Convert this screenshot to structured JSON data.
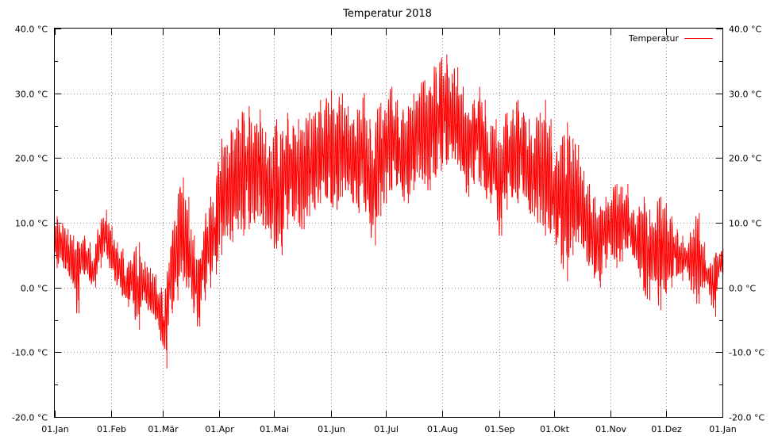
{
  "chart_data": {
    "type": "line",
    "title": "Temperatur 2018",
    "xlabel": "",
    "ylabel": "",
    "grid": true,
    "legend_position": "top-right",
    "xlim": [
      "2018-01-01",
      "2019-01-01"
    ],
    "ylim": [
      -20,
      40
    ],
    "y_ticks": [
      {
        "value": -20,
        "label": "-20.0 °C"
      },
      {
        "value": -10,
        "label": "-10.0 °C"
      },
      {
        "value": 0,
        "label": "0.0 °C"
      },
      {
        "value": 10,
        "label": "10.0 °C"
      },
      {
        "value": 20,
        "label": "20.0 °C"
      },
      {
        "value": 30,
        "label": "30.0 °C"
      },
      {
        "value": 40,
        "label": "40.0 °C"
      }
    ],
    "x_ticks": [
      {
        "value": "2018-01-01",
        "label": "01.Jan"
      },
      {
        "value": "2018-02-01",
        "label": "01.Feb"
      },
      {
        "value": "2018-03-01",
        "label": "01.Mär"
      },
      {
        "value": "2018-04-01",
        "label": "01.Apr"
      },
      {
        "value": "2018-05-01",
        "label": "01.Mai"
      },
      {
        "value": "2018-06-01",
        "label": "01.Jun"
      },
      {
        "value": "2018-07-01",
        "label": "01.Jul"
      },
      {
        "value": "2018-08-01",
        "label": "01.Aug"
      },
      {
        "value": "2018-09-01",
        "label": "01.Sep"
      },
      {
        "value": "2018-10-01",
        "label": "01.Okt"
      },
      {
        "value": "2018-11-01",
        "label": "01.Nov"
      },
      {
        "value": "2018-12-01",
        "label": "01.Dez"
      },
      {
        "value": "2019-01-01",
        "label": "01.Jan"
      }
    ],
    "series": [
      {
        "name": "Temperatur",
        "color": "#ff0000",
        "x": [
          "2018-01-01",
          "2018-01-04",
          "2018-01-07",
          "2018-01-10",
          "2018-01-13",
          "2018-01-16",
          "2018-01-19",
          "2018-01-22",
          "2018-01-25",
          "2018-01-28",
          "2018-01-31",
          "2018-02-03",
          "2018-02-06",
          "2018-02-09",
          "2018-02-12",
          "2018-02-15",
          "2018-02-18",
          "2018-02-21",
          "2018-02-24",
          "2018-02-27",
          "2018-03-02",
          "2018-03-05",
          "2018-03-08",
          "2018-03-11",
          "2018-03-14",
          "2018-03-17",
          "2018-03-20",
          "2018-03-23",
          "2018-03-26",
          "2018-03-29",
          "2018-04-01",
          "2018-04-04",
          "2018-04-07",
          "2018-04-10",
          "2018-04-13",
          "2018-04-16",
          "2018-04-19",
          "2018-04-22",
          "2018-04-25",
          "2018-04-28",
          "2018-05-01",
          "2018-05-04",
          "2018-05-07",
          "2018-05-10",
          "2018-05-13",
          "2018-05-16",
          "2018-05-19",
          "2018-05-22",
          "2018-05-25",
          "2018-05-28",
          "2018-05-31",
          "2018-06-03",
          "2018-06-06",
          "2018-06-09",
          "2018-06-12",
          "2018-06-15",
          "2018-06-18",
          "2018-06-21",
          "2018-06-24",
          "2018-06-27",
          "2018-06-30",
          "2018-07-03",
          "2018-07-06",
          "2018-07-09",
          "2018-07-12",
          "2018-07-15",
          "2018-07-18",
          "2018-07-21",
          "2018-07-24",
          "2018-07-27",
          "2018-07-30",
          "2018-08-02",
          "2018-08-05",
          "2018-08-08",
          "2018-08-11",
          "2018-08-14",
          "2018-08-17",
          "2018-08-20",
          "2018-08-23",
          "2018-08-26",
          "2018-08-29",
          "2018-09-01",
          "2018-09-04",
          "2018-09-07",
          "2018-09-10",
          "2018-09-13",
          "2018-09-16",
          "2018-09-19",
          "2018-09-22",
          "2018-09-25",
          "2018-09-28",
          "2018-10-01",
          "2018-10-04",
          "2018-10-07",
          "2018-10-10",
          "2018-10-13",
          "2018-10-16",
          "2018-10-19",
          "2018-10-22",
          "2018-10-25",
          "2018-10-28",
          "2018-10-31",
          "2018-11-03",
          "2018-11-06",
          "2018-11-09",
          "2018-11-12",
          "2018-11-15",
          "2018-11-18",
          "2018-11-21",
          "2018-11-24",
          "2018-11-27",
          "2018-11-30",
          "2018-12-03",
          "2018-12-06",
          "2018-12-09",
          "2018-12-12",
          "2018-12-15",
          "2018-12-18",
          "2018-12-21",
          "2018-12-24",
          "2018-12-27",
          "2018-12-31"
        ],
        "min": [
          3.0,
          4.0,
          2.5,
          1.0,
          -4.0,
          2.0,
          1.5,
          0.0,
          3.0,
          5.0,
          3.0,
          1.0,
          -1.0,
          -3.0,
          -2.0,
          -6.5,
          -2.0,
          -3.5,
          -5.0,
          -7.0,
          -12.5,
          -4.0,
          -2.0,
          1.0,
          0.0,
          -3.0,
          -6.0,
          -2.0,
          0.0,
          2.0,
          5.0,
          8.0,
          7.0,
          9.0,
          8.0,
          9.0,
          10.0,
          11.0,
          9.0,
          7.5,
          6.0,
          5.0,
          9.0,
          11.0,
          10.0,
          9.0,
          11.0,
          12.0,
          13.0,
          14.0,
          13.0,
          12.0,
          14.0,
          15.0,
          13.0,
          11.5,
          14.0,
          10.0,
          6.5,
          11.0,
          13.0,
          15.0,
          16.0,
          14.0,
          13.0,
          15.0,
          17.0,
          16.0,
          15.0,
          17.0,
          18.0,
          19.0,
          20.0,
          19.0,
          18.0,
          14.0,
          16.0,
          17.0,
          15.0,
          13.0,
          15.0,
          8.0,
          12.0,
          14.0,
          13.0,
          15.0,
          12.0,
          11.0,
          10.0,
          8.0,
          9.0,
          7.0,
          5.0,
          1.0,
          5.0,
          7.0,
          6.0,
          4.0,
          2.0,
          0.0,
          3.0,
          5.0,
          3.0,
          4.0,
          6.0,
          5.0,
          3.0,
          0.0,
          -2.0,
          1.0,
          -3.5,
          -1.0,
          0.0,
          2.0,
          1.0,
          3.0,
          -1.0,
          -2.5,
          0.0,
          0.5,
          -4.5,
          2.0
        ],
        "max": [
          11.0,
          10.0,
          9.0,
          8.0,
          7.0,
          8.0,
          7.0,
          4.0,
          10.0,
          12.0,
          9.5,
          7.0,
          6.0,
          3.0,
          5.0,
          7.0,
          4.0,
          3.0,
          2.0,
          0.0,
          -1.0,
          7.0,
          12.0,
          17.0,
          14.0,
          8.0,
          4.0,
          9.0,
          14.0,
          13.0,
          23.0,
          22.0,
          24.0,
          26.0,
          27.0,
          28.0,
          25.0,
          27.5,
          24.0,
          21.0,
          26.0,
          23.0,
          27.0,
          25.0,
          26.0,
          24.0,
          27.0,
          26.0,
          29.0,
          28.0,
          30.5,
          27.0,
          30.0,
          28.0,
          25.0,
          27.0,
          30.0,
          26.0,
          23.0,
          28.5,
          27.0,
          31.0,
          29.0,
          27.0,
          28.0,
          30.0,
          30.0,
          32.0,
          31.0,
          34.0,
          35.0,
          36.0,
          33.0,
          34.0,
          31.0,
          27.0,
          29.0,
          31.0,
          29.0,
          24.0,
          26.0,
          22.0,
          27.0,
          26.0,
          29.0,
          27.0,
          26.0,
          23.0,
          27.0,
          29.0,
          26.0,
          20.0,
          22.0,
          25.5,
          23.0,
          22.0,
          18.0,
          16.0,
          14.0,
          12.5,
          14.0,
          13.0,
          16.0,
          15.5,
          16.0,
          12.0,
          11.0,
          14.0,
          12.0,
          10.0,
          14.0,
          13.0,
          11.0,
          9.0,
          8.0,
          6.0,
          9.0,
          11.5,
          7.0,
          3.0,
          5.0,
          6.0
        ]
      }
    ]
  }
}
